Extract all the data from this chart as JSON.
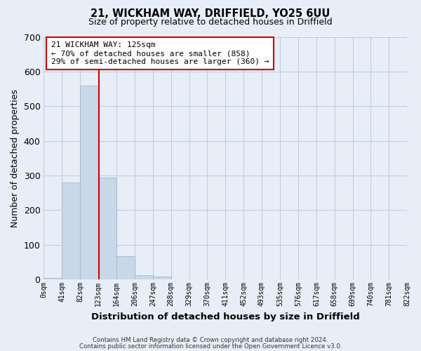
{
  "title": "21, WICKHAM WAY, DRIFFIELD, YO25 6UU",
  "subtitle": "Size of property relative to detached houses in Driffield",
  "xlabel": "Distribution of detached houses by size in Driffield",
  "ylabel": "Number of detached properties",
  "bar_values": [
    5,
    280,
    560,
    293,
    68,
    13,
    8,
    0,
    0,
    0,
    0,
    0,
    0,
    0,
    0,
    0,
    0,
    0,
    0,
    0
  ],
  "bin_edges": [
    0,
    41,
    82,
    123,
    164,
    206,
    247,
    288,
    329,
    370,
    411,
    452,
    493,
    535,
    576,
    617,
    658,
    699,
    740,
    781,
    822
  ],
  "bar_color": "#c8d8e8",
  "bar_edgecolor": "#a8bcd0",
  "grid_color": "#c0cce0",
  "background_color": "#e8eef8",
  "vline_x": 125,
  "vline_color": "#cc0000",
  "ylim": [
    0,
    700
  ],
  "yticks": [
    0,
    100,
    200,
    300,
    400,
    500,
    600,
    700
  ],
  "annotation_title": "21 WICKHAM WAY: 125sqm",
  "annotation_line1": "← 70% of detached houses are smaller (858)",
  "annotation_line2": "29% of semi-detached houses are larger (360) →",
  "annotation_box_facecolor": "#ffffff",
  "annotation_box_edgecolor": "#cc0000",
  "footer_line1": "Contains HM Land Registry data © Crown copyright and database right 2024.",
  "footer_line2": "Contains public sector information licensed under the Open Government Licence v3.0.",
  "tick_labels": [
    "0sqm",
    "41sqm",
    "82sqm",
    "123sqm",
    "164sqm",
    "206sqm",
    "247sqm",
    "288sqm",
    "329sqm",
    "370sqm",
    "411sqm",
    "452sqm",
    "493sqm",
    "535sqm",
    "576sqm",
    "617sqm",
    "658sqm",
    "699sqm",
    "740sqm",
    "781sqm",
    "822sqm"
  ]
}
